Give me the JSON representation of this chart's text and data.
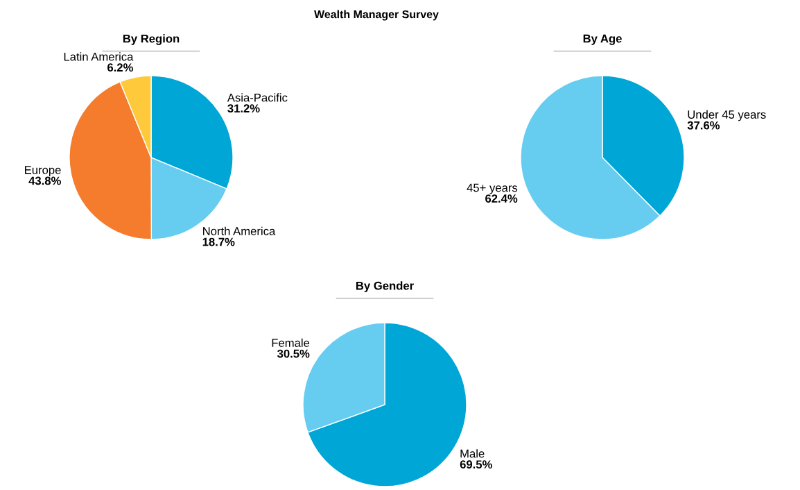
{
  "chart_data": [
    {
      "type": "other",
      "title": "Wealth Manager Survey"
    },
    {
      "type": "pie",
      "title": "By Region",
      "categories": [
        "Asia-Pacific",
        "North America",
        "Europe",
        "Latin America"
      ],
      "values": [
        31.2,
        18.7,
        43.8,
        6.2
      ],
      "colors": [
        "#00a6d6",
        "#66ccf0",
        "#f47c2c",
        "#ffc93c"
      ],
      "value_labels": [
        "31.2%",
        "18.7%",
        "43.8%",
        "6.2%"
      ]
    },
    {
      "type": "pie",
      "title": "By Age",
      "categories": [
        "Under 45 years",
        "45+ years"
      ],
      "values": [
        37.6,
        62.4
      ],
      "colors": [
        "#00a6d6",
        "#66ccf0"
      ],
      "value_labels": [
        "37.6%",
        "62.4%"
      ]
    },
    {
      "type": "pie",
      "title": "By Gender",
      "categories": [
        "Male",
        "Female"
      ],
      "values": [
        69.5,
        30.5
      ],
      "colors": [
        "#00a6d6",
        "#66ccf0"
      ],
      "value_labels": [
        "69.5%",
        "30.5%"
      ]
    }
  ]
}
